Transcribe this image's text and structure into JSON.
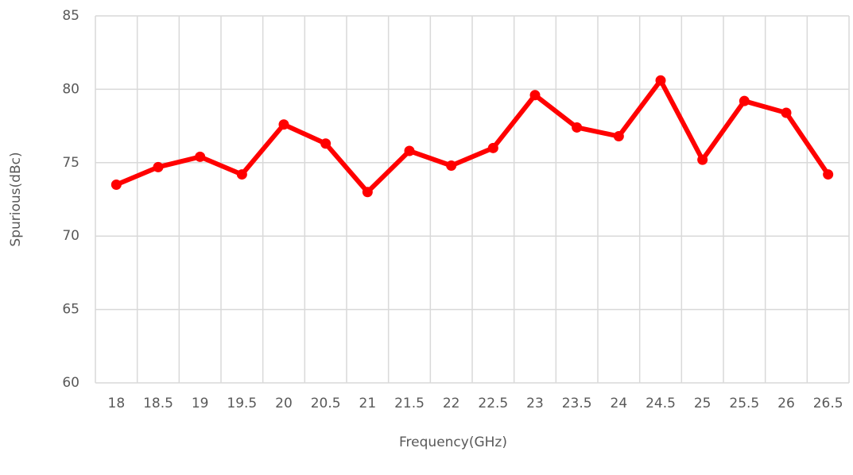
{
  "chart_data": {
    "type": "line",
    "xlabel": "Frequency(GHz)",
    "ylabel": "Spurious(dBc)",
    "categories": [
      "18",
      "18.5",
      "19",
      "19.5",
      "20",
      "20.5",
      "21",
      "21.5",
      "22",
      "22.5",
      "23",
      "23.5",
      "24",
      "24.5",
      "25",
      "25.5",
      "26",
      "26.5"
    ],
    "series": [
      {
        "name": "Spurious",
        "color": "#ff0000",
        "values": [
          73.5,
          74.7,
          75.4,
          74.2,
          77.6,
          76.3,
          73.0,
          75.8,
          74.8,
          76.0,
          79.6,
          77.4,
          76.8,
          80.6,
          75.2,
          79.2,
          78.4,
          74.2
        ]
      }
    ],
    "ylim": [
      60,
      85
    ],
    "yticks": [
      60,
      65,
      70,
      75,
      80,
      85
    ],
    "grid": true
  }
}
